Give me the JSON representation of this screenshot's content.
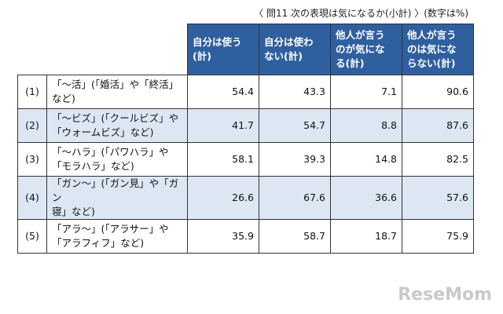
{
  "caption": "〈 問11 次の表現は気になるか(小計) 〉(数字は%)",
  "table": {
    "header": [
      "自分は使う\n(計)",
      "自分は使わ\nない(計)",
      "他人が言う\nのが気にな\nる(計)",
      "他人が言う\nのは気にな\nらない(計)"
    ],
    "rows": [
      {
        "no": "(1)",
        "label": "「～活」(「婚活」や「終活」\nなど)",
        "values": [
          54.4,
          43.3,
          7.1,
          90.6
        ]
      },
      {
        "no": "(2)",
        "label": "「～ビズ」(「クールビズ」や\n「ウォームビズ」など)",
        "values": [
          41.7,
          54.7,
          8.8,
          87.6
        ]
      },
      {
        "no": "(3)",
        "label": "「～ハラ」(「パワハラ」や\n「モラハラ」など)",
        "values": [
          58.1,
          39.3,
          14.8,
          82.5
        ]
      },
      {
        "no": "(4)",
        "label": "「ガン～」(「ガン見」や「ガン\n寝」など)",
        "values": [
          26.6,
          67.6,
          36.6,
          57.6
        ]
      },
      {
        "no": "(5)",
        "label": "「アラ～」(「アラサー」や\n「アラフィフ」など)",
        "values": [
          35.9,
          58.7,
          18.7,
          75.9
        ]
      }
    ]
  },
  "watermark": "ReseMom"
}
